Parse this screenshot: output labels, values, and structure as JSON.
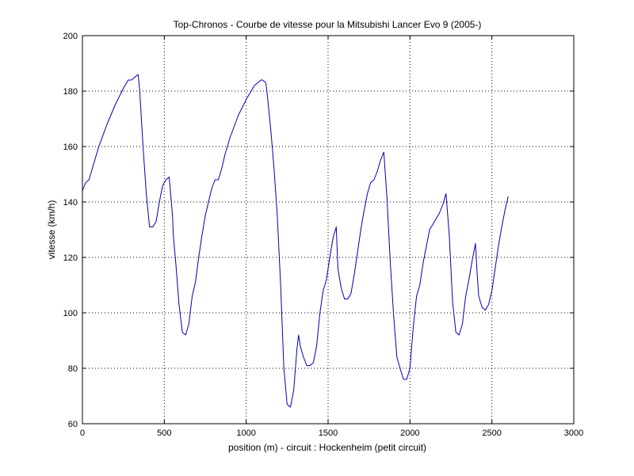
{
  "chart_data": {
    "type": "line",
    "title": "Top-Chronos - Courbe de vitesse pour la Mitsubishi Lancer Evo 9 (2005-)",
    "xlabel": "position (m) - circuit : Hockenheim (petit circuit)",
    "ylabel": "vitesse (km/h)",
    "xlim": [
      0,
      3000
    ],
    "ylim": [
      60,
      200
    ],
    "xticks": [
      0,
      500,
      1000,
      1500,
      2000,
      2500,
      3000
    ],
    "yticks": [
      60,
      80,
      100,
      120,
      140,
      160,
      180,
      200
    ],
    "grid": true,
    "line_color": "#0000b4",
    "series": [
      {
        "x": [
          0,
          20,
          40,
          60,
          100,
          150,
          200,
          250,
          280,
          300,
          320,
          340,
          350,
          370,
          390,
          410,
          430,
          450,
          470,
          490,
          510,
          530,
          550,
          555,
          570,
          590,
          610,
          630,
          650,
          670,
          690,
          710,
          730,
          750,
          770,
          790,
          810,
          830,
          850,
          870,
          900,
          950,
          1000,
          1050,
          1090,
          1100,
          1120,
          1130,
          1150,
          1170,
          1190,
          1210,
          1230,
          1250,
          1270,
          1290,
          1310,
          1320,
          1330,
          1350,
          1370,
          1390,
          1410,
          1430,
          1450,
          1470,
          1490,
          1510,
          1530,
          1550,
          1560,
          1580,
          1600,
          1620,
          1640,
          1660,
          1680,
          1700,
          1720,
          1740,
          1760,
          1780,
          1800,
          1820,
          1840,
          1860,
          1880,
          1900,
          1920,
          1940,
          1960,
          1980,
          2000,
          2020,
          2040,
          2060,
          2080,
          2100,
          2120,
          2140,
          2160,
          2180,
          2200,
          2220,
          2240,
          2260,
          2280,
          2300,
          2320,
          2340,
          2360,
          2380,
          2400,
          2410,
          2420,
          2440,
          2460,
          2480,
          2500,
          2520,
          2540,
          2560,
          2580,
          2600
        ],
        "y": [
          144,
          147,
          148,
          152,
          160,
          168,
          175,
          181,
          184,
          184,
          185,
          186,
          180,
          160,
          143,
          131,
          131,
          133,
          140,
          146,
          148,
          149,
          135,
          128,
          118,
          103,
          93,
          92,
          96,
          106,
          111,
          120,
          128,
          135,
          140,
          145,
          148,
          148,
          152,
          157,
          163,
          171,
          177,
          182,
          184,
          184,
          183,
          178,
          166,
          152,
          135,
          110,
          80,
          67,
          66,
          72,
          87,
          92,
          88,
          84,
          81,
          81,
          82,
          88,
          100,
          108,
          112,
          120,
          127,
          131,
          116,
          109,
          105,
          105,
          107,
          114,
          122,
          130,
          137,
          143,
          147,
          148,
          151,
          155,
          158,
          141,
          118,
          99,
          84,
          80,
          76,
          76,
          80,
          95,
          106,
          110,
          118,
          124,
          130,
          132,
          134,
          136,
          139,
          143,
          128,
          104,
          93,
          92,
          96,
          106,
          112,
          119,
          125,
          114,
          106,
          102,
          101,
          103,
          108,
          116,
          124,
          131,
          137,
          142
        ]
      }
    ]
  }
}
